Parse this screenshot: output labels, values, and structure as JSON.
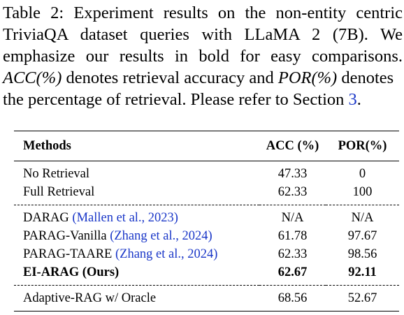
{
  "caption": {
    "line1": "Table 2: Experiment results on the non-entity centric",
    "line2": "TriviaQA dataset queries with LLaMA 2 (7B). We",
    "line3": "emphasize our results in bold for easy comparisons.",
    "line4_acc": "ACC(%)",
    "line4_mid": " denotes retrieval accuracy and ",
    "line4_por": "POR(%)",
    "line4_end": " denotes",
    "line5_start": "the percentage of retrieval. Please refer to Section ",
    "line5_ref": "3",
    "line5_end": "."
  },
  "table": {
    "headers": {
      "methods": "Methods",
      "acc": "ACC (%)",
      "por": "POR(%)"
    },
    "rows": [
      {
        "method": "No Retrieval",
        "cite": "",
        "acc": "47.33",
        "por": "0"
      },
      {
        "method": "Full Retrieval",
        "cite": "",
        "acc": "62.33",
        "por": "100"
      },
      {
        "method": "DARAG ",
        "cite": "(Mallen et al., 2023)",
        "acc": "N/A",
        "por": "N/A"
      },
      {
        "method": "PARAG-Vanilla ",
        "cite": "(Zhang et al., 2024)",
        "acc": "61.78",
        "por": "97.67"
      },
      {
        "method": "PARAG-TAARE ",
        "cite": "(Zhang et al., 2024)",
        "acc": "62.33",
        "por": "98.56"
      },
      {
        "method": "EI-ARAG (Ours)",
        "cite": "",
        "acc": "62.67",
        "por": "92.11"
      },
      {
        "method": "Adaptive-RAG w/ Oracle",
        "cite": "",
        "acc": "68.56",
        "por": "52.67"
      }
    ]
  }
}
